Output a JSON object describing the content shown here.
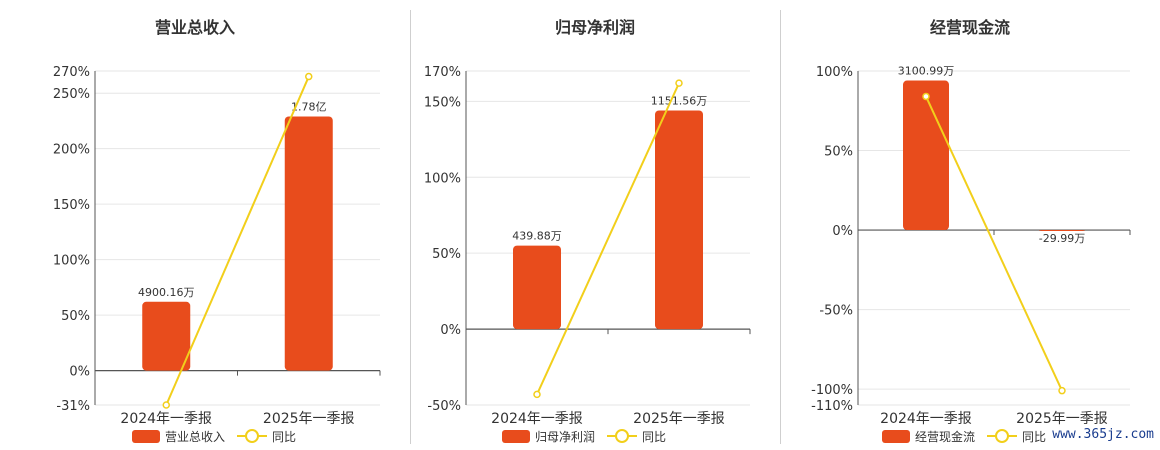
{
  "colors": {
    "bar": "#e84c1c",
    "line": "#f2cf1b",
    "grid": "#e6e6e6",
    "axis": "#555555",
    "text": "#333333"
  },
  "chart_data": [
    {
      "type": "bar",
      "title": "营业总收入",
      "categories": [
        "2024年一季报",
        "2025年一季报"
      ],
      "series": [
        {
          "name": "营业总收入",
          "type": "bar",
          "values": [
            62,
            229
          ],
          "labels": [
            "4900.16万",
            "1.78亿"
          ]
        },
        {
          "name": "同比",
          "type": "line",
          "values": [
            -31,
            265
          ]
        }
      ],
      "ylim": [
        -31,
        270
      ],
      "yticks": [
        270,
        250,
        200,
        150,
        100,
        50,
        0,
        -31
      ],
      "legend": "bottom"
    },
    {
      "type": "bar",
      "title": "归母净利润",
      "categories": [
        "2024年一季报",
        "2025年一季报"
      ],
      "series": [
        {
          "name": "归母净利润",
          "type": "bar",
          "values": [
            55,
            144
          ],
          "labels": [
            "439.88万",
            "1151.56万"
          ]
        },
        {
          "name": "同比",
          "type": "line",
          "values": [
            -43,
            162
          ]
        }
      ],
      "ylim": [
        -50,
        170
      ],
      "yticks": [
        170,
        150,
        100,
        50,
        0,
        -50
      ],
      "legend": "bottom"
    },
    {
      "type": "bar",
      "title": "经营现金流",
      "categories": [
        "2024年一季报",
        "2025年一季报"
      ],
      "series": [
        {
          "name": "经营现金流",
          "type": "bar",
          "values": [
            94,
            -0.3
          ],
          "labels": [
            "3100.99万",
            "-29.99万"
          ]
        },
        {
          "name": "同比",
          "type": "line",
          "values": [
            84,
            -101
          ]
        }
      ],
      "ylim": [
        -110,
        100
      ],
      "yticks": [
        100,
        50,
        0,
        -50,
        -100,
        -110
      ],
      "legend": "bottom"
    }
  ],
  "tick_labels": [
    [
      "270%",
      "250%",
      "200%",
      "150%",
      "100%",
      "50%",
      "0%",
      "-31%"
    ],
    [
      "170%",
      "150%",
      "100%",
      "50%",
      "0%",
      "-50%"
    ],
    [
      "100%",
      "50%",
      "0%",
      "-50%",
      "-100%",
      "-110%"
    ]
  ],
  "watermark": "www.365jz.com"
}
